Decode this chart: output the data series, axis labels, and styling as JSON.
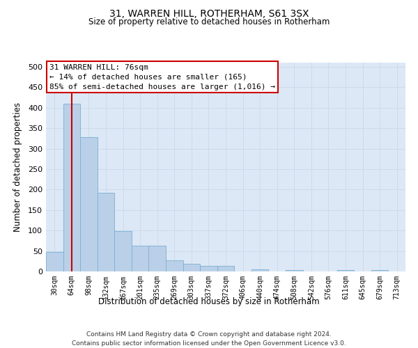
{
  "title": "31, WARREN HILL, ROTHERHAM, S61 3SX",
  "subtitle": "Size of property relative to detached houses in Rotherham",
  "xlabel": "Distribution of detached houses by size in Rotherham",
  "ylabel": "Number of detached properties",
  "footer_line1": "Contains HM Land Registry data © Crown copyright and database right 2024.",
  "footer_line2": "Contains public sector information licensed under the Open Government Licence v3.0.",
  "annotation_title": "31 WARREN HILL: 76sqm",
  "annotation_line2": "← 14% of detached houses are smaller (165)",
  "annotation_line3": "85% of semi-detached houses are larger (1,016) →",
  "bar_color": "#bad0e8",
  "bar_edge_color": "#7bafd4",
  "marker_line_color": "#cc0000",
  "annotation_box_edge_color": "#cc0000",
  "background_color": "#ffffff",
  "plot_bg_color": "#dce8f5",
  "grid_color": "#c8d8ec",
  "bin_labels": [
    "30sqm",
    "64sqm",
    "98sqm",
    "132sqm",
    "167sqm",
    "201sqm",
    "235sqm",
    "269sqm",
    "303sqm",
    "337sqm",
    "372sqm",
    "406sqm",
    "440sqm",
    "474sqm",
    "508sqm",
    "542sqm",
    "576sqm",
    "611sqm",
    "645sqm",
    "679sqm",
    "713sqm"
  ],
  "values": [
    47,
    410,
    328,
    192,
    99,
    63,
    63,
    28,
    18,
    14,
    14,
    0,
    5,
    0,
    4,
    0,
    0,
    4,
    0,
    4,
    0
  ],
  "red_line_bin_index": 1.5,
  "ylim": [
    0,
    510
  ],
  "yticks": [
    0,
    50,
    100,
    150,
    200,
    250,
    300,
    350,
    400,
    450,
    500
  ]
}
